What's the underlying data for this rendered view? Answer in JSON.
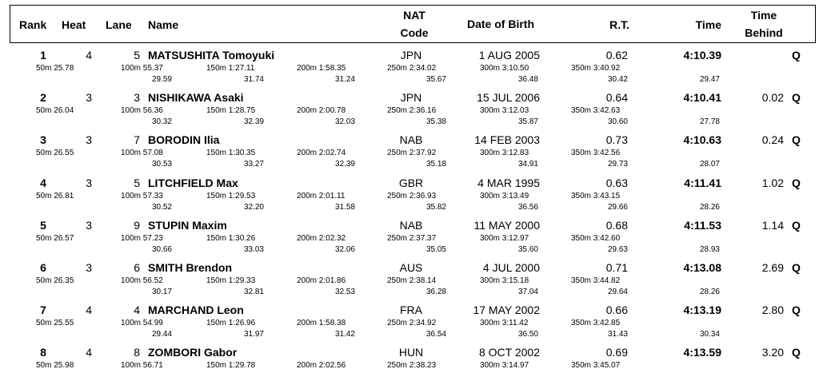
{
  "header": {
    "rank": "Rank",
    "heat": "Heat",
    "lane": "Lane",
    "name": "Name",
    "nat_line1": "NAT",
    "nat_line2": "Code",
    "dob": "Date of Birth",
    "rt": "R.T.",
    "time": "Time",
    "behind_line1": "Time",
    "behind_line2": "Behind"
  },
  "entries": [
    {
      "rank": "1",
      "heat": "4",
      "lane": "5",
      "name": "MATSUSHITA Tomoyuki",
      "nat": "JPN",
      "dob": "1 AUG 2005",
      "rt": "0.62",
      "time": "4:10.39",
      "behind": "",
      "q": "Q",
      "s50": "50m  25.78",
      "s100": "100m  55.37",
      "s150": "150m  1:27.11",
      "s200": "200m  1:58.35",
      "s250": "250m  2:34.02",
      "s300": "300m  3:10.50",
      "s350": "350m  3:40.92",
      "d100": "29.59",
      "d150": "31.74",
      "d200": "31.24",
      "d250": "35.67",
      "d300": "36.48",
      "d350": "30.42",
      "d400": "29.47"
    },
    {
      "rank": "2",
      "heat": "3",
      "lane": "3",
      "name": "NISHIKAWA Asaki",
      "nat": "JPN",
      "dob": "15 JUL 2006",
      "rt": "0.64",
      "time": "4:10.41",
      "behind": "0.02",
      "q": "Q",
      "s50": "50m  26.04",
      "s100": "100m  56.36",
      "s150": "150m  1:28.75",
      "s200": "200m  2:00.78",
      "s250": "250m  2:36.16",
      "s300": "300m  3:12.03",
      "s350": "350m  3:42.63",
      "d100": "30.32",
      "d150": "32.39",
      "d200": "32.03",
      "d250": "35.38",
      "d300": "35.87",
      "d350": "30.60",
      "d400": "27.78"
    },
    {
      "rank": "3",
      "heat": "3",
      "lane": "7",
      "name": "BORODIN Ilia",
      "nat": "NAB",
      "dob": "14 FEB 2003",
      "rt": "0.73",
      "time": "4:10.63",
      "behind": "0.24",
      "q": "Q",
      "s50": "50m  26.55",
      "s100": "100m  57.08",
      "s150": "150m  1:30.35",
      "s200": "200m  2:02.74",
      "s250": "250m  2:37.92",
      "s300": "300m  3:12.83",
      "s350": "350m  3:42.56",
      "d100": "30.53",
      "d150": "33.27",
      "d200": "32.39",
      "d250": "35.18",
      "d300": "34.91",
      "d350": "29.73",
      "d400": "28.07"
    },
    {
      "rank": "4",
      "heat": "3",
      "lane": "5",
      "name": "LITCHFIELD Max",
      "nat": "GBR",
      "dob": "4 MAR 1995",
      "rt": "0.63",
      "time": "4:11.41",
      "behind": "1.02",
      "q": "Q",
      "s50": "50m  26.81",
      "s100": "100m  57.33",
      "s150": "150m  1:29.53",
      "s200": "200m  2:01.11",
      "s250": "250m  2:36.93",
      "s300": "300m  3:13.49",
      "s350": "350m  3:43.15",
      "d100": "30.52",
      "d150": "32.20",
      "d200": "31.58",
      "d250": "35.82",
      "d300": "36.56",
      "d350": "29.66",
      "d400": "28.26"
    },
    {
      "rank": "5",
      "heat": "3",
      "lane": "9",
      "name": "STUPIN Maxim",
      "nat": "NAB",
      "dob": "11 MAY 2000",
      "rt": "0.68",
      "time": "4:11.53",
      "behind": "1.14",
      "q": "Q",
      "s50": "50m  26.57",
      "s100": "100m  57.23",
      "s150": "150m  1:30.26",
      "s200": "200m  2:02.32",
      "s250": "250m  2:37.37",
      "s300": "300m  3:12.97",
      "s350": "350m  3:42.60",
      "d100": "30.66",
      "d150": "33.03",
      "d200": "32.06",
      "d250": "35.05",
      "d300": "35.60",
      "d350": "29.63",
      "d400": "28.93"
    },
    {
      "rank": "6",
      "heat": "3",
      "lane": "6",
      "name": "SMITH Brendon",
      "nat": "AUS",
      "dob": "4 JUL 2000",
      "rt": "0.71",
      "time": "4:13.08",
      "behind": "2.69",
      "q": "Q",
      "s50": "50m  26.35",
      "s100": "100m  56.52",
      "s150": "150m  1:29.33",
      "s200": "200m  2:01.86",
      "s250": "250m  2:38.14",
      "s300": "300m  3:15.18",
      "s350": "350m  3:44.82",
      "d100": "30.17",
      "d150": "32.81",
      "d200": "32.53",
      "d250": "36.28",
      "d300": "37.04",
      "d350": "29.64",
      "d400": "28.26"
    },
    {
      "rank": "7",
      "heat": "4",
      "lane": "4",
      "name": "MARCHAND Leon",
      "nat": "FRA",
      "dob": "17 MAY 2002",
      "rt": "0.66",
      "time": "4:13.19",
      "behind": "2.80",
      "q": "Q",
      "s50": "50m  25.55",
      "s100": "100m  54.99",
      "s150": "150m  1:26.96",
      "s200": "200m  1:58.38",
      "s250": "250m  2:34.92",
      "s300": "300m  3:11.42",
      "s350": "350m  3:42.85",
      "d100": "29.44",
      "d150": "31.97",
      "d200": "31.42",
      "d250": "36.54",
      "d300": "36.50",
      "d350": "31.43",
      "d400": "30.34"
    },
    {
      "rank": "8",
      "heat": "4",
      "lane": "8",
      "name": "ZOMBORI Gabor",
      "nat": "HUN",
      "dob": "8 OCT 2002",
      "rt": "0.69",
      "time": "4:13.59",
      "behind": "3.20",
      "q": "Q",
      "s50": "50m  25.98",
      "s100": "100m  56.71",
      "s150": "150m  1:29.78",
      "s200": "200m  2:02.56",
      "s250": "250m  2:38.23",
      "s300": "300m  3:14.97",
      "s350": "350m  3:45.07",
      "d100": "",
      "d150": "",
      "d200": "",
      "d250": "",
      "d300": "",
      "d350": "",
      "d400": ""
    }
  ]
}
